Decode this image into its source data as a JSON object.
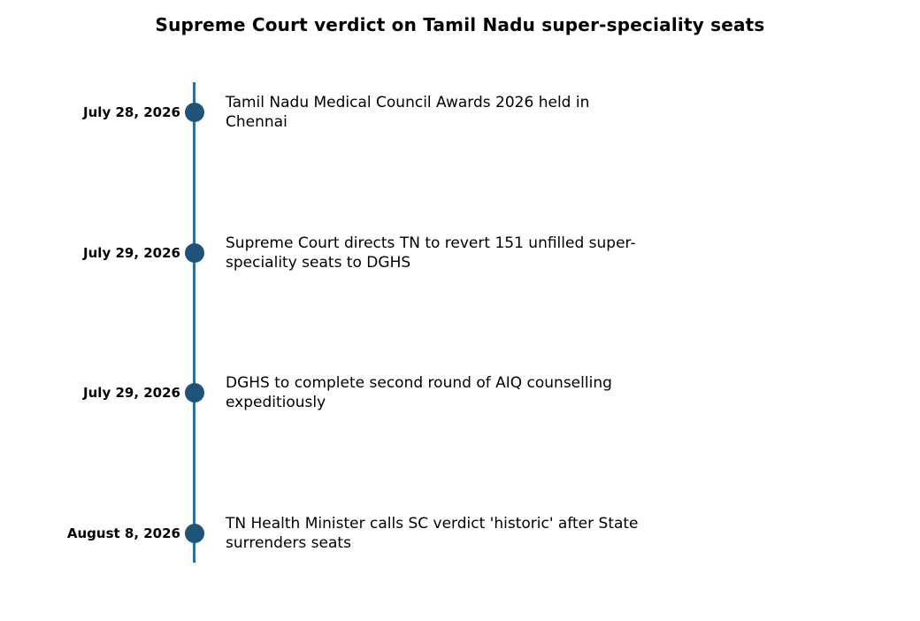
{
  "title": "Supreme Court verdict on Tamil Nadu super-speciality seats",
  "colors": {
    "axis_line": "#2e6f9a",
    "marker": "#1f5478",
    "text": "#000000",
    "background": "#ffffff"
  },
  "events": [
    {
      "date": "July 28, 2026",
      "description": "Tamil Nadu Medical Council Awards 2026 held in Chennai"
    },
    {
      "date": "July 29, 2026",
      "description": "Supreme Court directs TN to revert 151 unfilled super-speciality seats to DGHS"
    },
    {
      "date": "July 29, 2026",
      "description": "DGHS to complete second round of AIQ counselling expeditiously"
    },
    {
      "date": "August 8, 2026",
      "description": "TN Health Minister calls SC verdict 'historic' after State surrenders seats"
    }
  ]
}
